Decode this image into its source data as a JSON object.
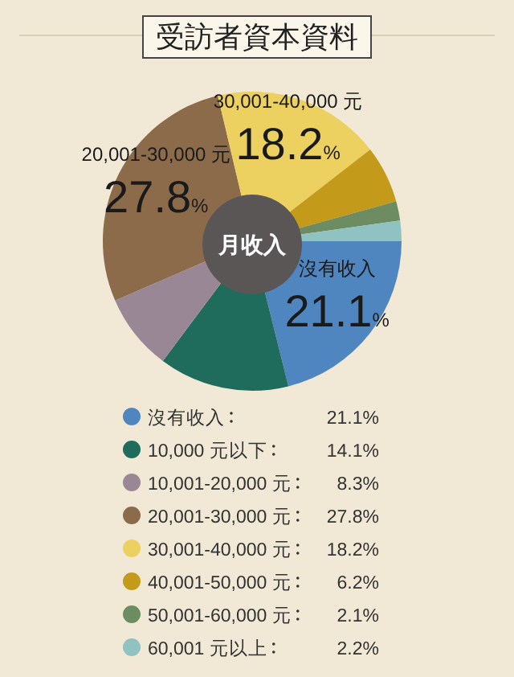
{
  "chart_data": {
    "type": "donut",
    "title": "受訪者資本資料",
    "categories": [
      "沒有收入",
      "10,000 元以下",
      "10,001-20,000 元",
      "20,001-30,000 元",
      "30,001-40,000 元",
      "40,001-50,000 元",
      "50,001-60,000 元",
      "60,001 元以上"
    ],
    "values": [
      21.1,
      14.1,
      8.3,
      27.8,
      18.2,
      6.2,
      2.1,
      2.2
    ],
    "colors": [
      "#4f86c0",
      "#1f6b5c",
      "#9a8796",
      "#8b6b4a",
      "#ecd060",
      "#c49a1a",
      "#6e8c62",
      "#8fc2c0"
    ],
    "value_labels": [
      "21.1%",
      "14.1%",
      "8.3%",
      "27.8%",
      "18.2%",
      "6.2%",
      "2.1%",
      "2.2%"
    ],
    "annotations": [
      {
        "text": "沒有收入",
        "x": "沒有收入"
      },
      {
        "text": "21.1%",
        "x": "沒有收入"
      },
      {
        "text": "20,001-30,000 元",
        "x": "20,001-30,000 元"
      },
      {
        "text": "27.8%",
        "x": "20,001-30,000 元"
      },
      {
        "text": "30,001-40,000 元",
        "x": "30,001-40,000 元"
      },
      {
        "text": "18.2%",
        "x": "30,001-40,000 元"
      },
      "月收入"
    ],
    "legend": "bottom"
  }
}
